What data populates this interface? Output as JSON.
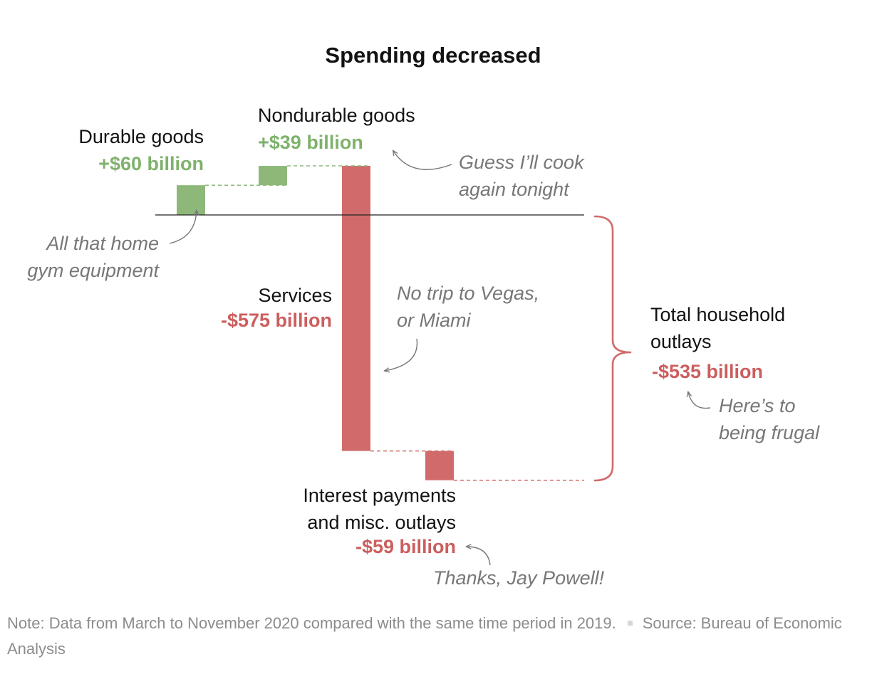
{
  "title": "Spending decreased",
  "colors": {
    "positive": "#8db87a",
    "negative": "#d16b6b",
    "positive_text": "#7fb26c",
    "negative_text": "#cc5e5e",
    "annotation": "#777777",
    "baseline": "#222222"
  },
  "chart_data": {
    "type": "waterfall",
    "title": "Spending decreased",
    "unit": "billion",
    "steps": [
      {
        "category": "Durable goods",
        "value": 60,
        "value_label": "+$60 billion"
      },
      {
        "category": "Nondurable goods",
        "value": 39,
        "value_label": "+$39 billion"
      },
      {
        "category": "Services",
        "value": -575,
        "value_label": "-$575 billion"
      },
      {
        "category": "Interest payments and misc. outlays",
        "value": -59,
        "value_label": "-$59 billion"
      }
    ],
    "total": {
      "category": "Total household outlays",
      "value": -535,
      "value_label": "-$535 billion"
    }
  },
  "labels": {
    "durable": {
      "line1": "Durable goods",
      "value": "+$60 billion"
    },
    "nondurable": {
      "line1": "Nondurable goods",
      "value": "+$39 billion"
    },
    "services": {
      "line1": "Services",
      "value": "-$575 billion"
    },
    "interest": {
      "line1": "Interest payments",
      "line2": "and misc. outlays",
      "value": "-$59 billion"
    },
    "total": {
      "line1": "Total household",
      "line2": "outlays",
      "value": "-$535 billion"
    }
  },
  "annotations": {
    "gym": {
      "line1": "All that home",
      "line2": "gym equipment"
    },
    "cook": {
      "line1": "Guess I’ll cook",
      "line2": "again tonight"
    },
    "vegas": {
      "line1": "No trip to Vegas,",
      "line2": "or Miami"
    },
    "frugal": {
      "line1": "Here’s to",
      "line2": "being frugal"
    },
    "powell": {
      "line1": "Thanks, Jay Powell!"
    }
  },
  "footer": {
    "note": "Note: Data from March to November 2020 compared with the same time period in 2019.",
    "source": "Source: Bureau of Economic Analysis"
  }
}
